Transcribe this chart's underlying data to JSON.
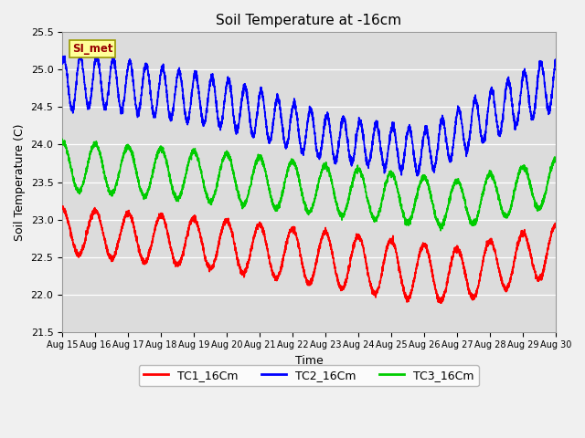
{
  "title": "Soil Temperature at -16cm",
  "xlabel": "Time",
  "ylabel": "Soil Temperature (C)",
  "ylim": [
    21.5,
    25.5
  ],
  "yticks": [
    21.5,
    22.0,
    22.5,
    23.0,
    23.5,
    24.0,
    24.5,
    25.0,
    25.5
  ],
  "plot_bg": "#dcdcdc",
  "fig_bg": "#f0f0f0",
  "legend_labels": [
    "TC1_16Cm",
    "TC2_16Cm",
    "TC3_16Cm"
  ],
  "legend_colors": [
    "#ff0000",
    "#0000ff",
    "#00cc00"
  ],
  "si_met_label": "SI_met",
  "si_met_bg": "#ffff99",
  "si_met_border": "#999900",
  "si_met_text_color": "#990000",
  "n_days": 15,
  "start_day": 15,
  "end_day": 30,
  "line_width": 1.2,
  "seed": 42
}
